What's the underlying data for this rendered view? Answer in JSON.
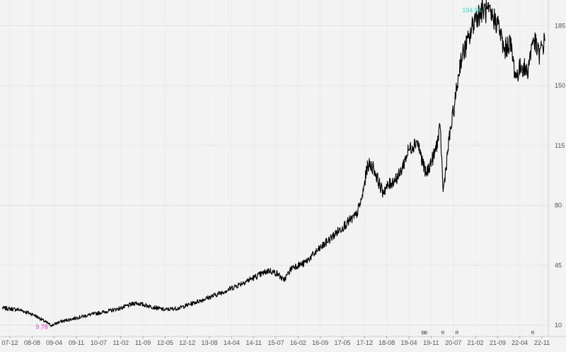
{
  "chart_data": {
    "type": "line",
    "title": "",
    "xlabel": "",
    "ylabel": "",
    "ylim": [
      10,
      198
    ],
    "y_ticks": [
      10,
      45,
      80,
      115,
      150,
      185
    ],
    "y_axis_side": "right",
    "grid": true,
    "x_tick_labels": [
      "07-12",
      "08-08",
      "09-04",
      "09-11",
      "10-07",
      "11-02",
      "11-09",
      "12-05",
      "12-12",
      "13-08",
      "14-04",
      "14-11",
      "15-07",
      "16-02",
      "16-09",
      "17-05",
      "17-12",
      "18-08",
      "19-04",
      "19-11",
      "20-07",
      "21-02",
      "21-09",
      "22-04",
      "22-11"
    ],
    "series": [
      {
        "color": "#000000",
        "x": [
          "2007-07",
          "2008-01",
          "2008-06",
          "2008-12",
          "2009-03",
          "2009-08",
          "2010-01",
          "2010-07",
          "2010-12",
          "2011-05",
          "2011-10",
          "2012-03",
          "2012-08",
          "2013-01",
          "2013-06",
          "2013-12",
          "2014-05",
          "2014-10",
          "2015-03",
          "2015-06",
          "2015-08",
          "2015-11",
          "2016-03",
          "2016-08",
          "2017-01",
          "2017-06",
          "2017-09",
          "2017-11",
          "2018-01",
          "2018-03",
          "2018-06",
          "2018-09",
          "2018-12",
          "2019-03",
          "2019-06",
          "2019-09",
          "2019-12",
          "2020-02",
          "2020-03",
          "2020-05",
          "2020-07",
          "2020-09",
          "2020-12",
          "2021-02",
          "2021-05",
          "2021-08",
          "2021-10",
          "2021-12",
          "2022-02",
          "2022-04",
          "2022-06",
          "2022-08",
          "2022-10",
          "2022-12",
          "2023-02"
        ],
        "y": [
          20,
          19,
          16,
          9.78,
          12,
          14,
          16,
          18,
          20,
          23,
          21,
          19,
          20,
          23,
          26,
          30,
          34,
          38,
          42,
          40,
          36,
          44,
          46,
          54,
          62,
          70,
          74,
          84,
          104,
          102,
          88,
          93,
          98,
          112,
          118,
          98,
          110,
          125,
          88,
          118,
          140,
          165,
          178,
          190,
          194.56,
          190,
          186,
          170,
          176,
          155,
          162,
          158,
          178,
          168,
          176
        ]
      }
    ],
    "annotations": [
      {
        "text": "194.56",
        "x": "2021-05",
        "y": 194.56,
        "color": "#3ad6c8"
      },
      {
        "text": "9.78",
        "x": "2008-12",
        "y": 9.78,
        "color": "#e040c8"
      }
    ],
    "event_markers": [
      "B",
      "B",
      "R",
      "R",
      "R"
    ]
  }
}
